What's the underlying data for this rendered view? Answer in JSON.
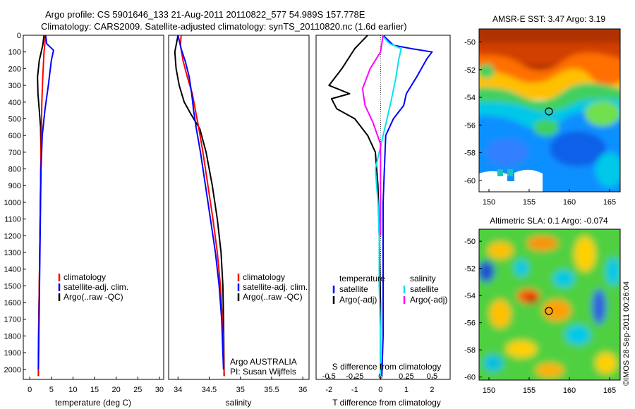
{
  "header": {
    "line1": "Argo profile: CS 5901646_133 21-Aug-2011 20110822_577 54.989S 157.778E",
    "line2": "Climatology: CARS2009. Satellite-adjusted climatology: synTS_20110820.nc (1.6d earlier)"
  },
  "depth_ticks": [
    0,
    100,
    200,
    300,
    400,
    500,
    600,
    700,
    800,
    900,
    1000,
    1100,
    1200,
    1300,
    1400,
    1500,
    1600,
    1700,
    1800,
    1900,
    2000
  ],
  "chart_data": [
    {
      "type": "line",
      "name": "temperature",
      "xlabel": "temperature (deg C)",
      "xlim": [
        -1.5,
        31
      ],
      "xticks": [
        0,
        5,
        10,
        15,
        20,
        25,
        30
      ],
      "ylim": [
        2060,
        0
      ],
      "legend": [
        "climatology",
        "satellite-adj. clim.",
        "Argo(..raw -QC)"
      ],
      "legend_colors": [
        "#ff0000",
        "#0000ff",
        "#000000"
      ],
      "series": [
        {
          "color": "#000000",
          "x": [
            3.3,
            3.0,
            2.2,
            1.8,
            1.9,
            2.2,
            2.5,
            2.6,
            2.5,
            2.4,
            2.3,
            2.2,
            2.1,
            2.0,
            2.0
          ],
          "y": [
            0,
            60,
            150,
            250,
            350,
            450,
            550,
            700,
            900,
            1100,
            1300,
            1500,
            1700,
            1900,
            2040
          ]
        },
        {
          "color": "#ff0000",
          "x": [
            3.6,
            3.5,
            3.3,
            3.0,
            2.8,
            2.7,
            2.6,
            2.5,
            2.4,
            2.3,
            2.2,
            2.1,
            2.05,
            2.0
          ],
          "y": [
            0,
            50,
            100,
            250,
            400,
            550,
            700,
            900,
            1100,
            1300,
            1500,
            1700,
            1900,
            2040
          ]
        },
        {
          "color": "#0000ff",
          "x": [
            3.7,
            3.9,
            5.5,
            5.0,
            4.3,
            3.5,
            2.9,
            2.6,
            2.5,
            2.4,
            2.3,
            2.2,
            2.1,
            2.0
          ],
          "y": [
            0,
            50,
            90,
            150,
            300,
            450,
            600,
            800,
            1000,
            1200,
            1400,
            1600,
            1800,
            2000
          ]
        }
      ]
    },
    {
      "type": "line",
      "name": "salinity",
      "xlabel": "salinity",
      "xlim": [
        33.85,
        36.1
      ],
      "xticks": [
        34,
        34.5,
        35,
        35.5,
        36
      ],
      "ylim": [
        2060,
        0
      ],
      "legend": [
        "climatology",
        "satellite-adj. clim.",
        "Argo(..raw -QC)"
      ],
      "legend_colors": [
        "#ff0000",
        "#0000ff",
        "#000000"
      ],
      "series": [
        {
          "color": "#000000",
          "x": [
            34.0,
            33.95,
            33.97,
            34.02,
            34.1,
            34.22,
            34.35,
            34.45,
            34.55,
            34.63,
            34.69,
            34.72,
            34.73,
            34.735,
            34.74
          ],
          "y": [
            0,
            100,
            200,
            300,
            400,
            480,
            560,
            700,
            900,
            1100,
            1300,
            1500,
            1700,
            1900,
            2040
          ]
        },
        {
          "color": "#ff0000",
          "x": [
            34.05,
            34.04,
            34.08,
            34.15,
            34.23,
            34.28,
            34.33,
            34.4,
            34.48,
            34.56,
            34.63,
            34.68,
            34.71,
            34.73,
            34.74
          ],
          "y": [
            0,
            60,
            150,
            250,
            350,
            450,
            550,
            700,
            900,
            1100,
            1300,
            1500,
            1700,
            1900,
            2040
          ]
        },
        {
          "color": "#0000ff",
          "x": [
            34.0,
            34.05,
            34.12,
            34.18,
            34.22,
            34.25,
            34.29,
            34.36,
            34.44,
            34.52,
            34.6,
            34.66,
            34.7,
            34.72,
            34.73
          ],
          "y": [
            0,
            80,
            160,
            250,
            350,
            450,
            550,
            700,
            900,
            1100,
            1300,
            1500,
            1700,
            1900,
            2000
          ]
        }
      ]
    },
    {
      "type": "line",
      "name": "difference",
      "xlabel": "T difference from climatology",
      "xlabel_top": "S difference from climatology",
      "xlim": [
        -2.5,
        2.7
      ],
      "xticks_bottom": [
        -2,
        -1,
        0,
        1,
        2
      ],
      "xticks_top": [
        [
          "-0.5",
          -2
        ],
        [
          "-0.25",
          -1
        ],
        [
          "0",
          0
        ],
        [
          "0.25",
          1
        ],
        [
          "0.5",
          2
        ]
      ],
      "ylim": [
        2060,
        0
      ],
      "legend_left": {
        "title": "temperature",
        "items": [
          "satellite",
          "Argo(-adj)"
        ],
        "colors": [
          "#0000ff",
          "#000000"
        ]
      },
      "legend_right": {
        "title": "salinity",
        "items": [
          "satellite",
          "Argo(-adj)"
        ],
        "colors": [
          "#00e5ee",
          "#ff00ff"
        ]
      },
      "series": [
        {
          "color": "#000000",
          "x": [
            -0.5,
            -1.0,
            -1.5,
            -1.7,
            -2.0,
            -1.2,
            -1.9,
            -1.7,
            -1.0,
            -0.5,
            -0.2,
            -0.1,
            -0.05,
            0,
            0
          ],
          "y": [
            0,
            80,
            200,
            240,
            300,
            350,
            380,
            440,
            500,
            600,
            700,
            900,
            1200,
            1600,
            2040
          ]
        },
        {
          "color": "#0000ff",
          "x": [
            0.1,
            0.5,
            1.2,
            2.0,
            1.8,
            1.4,
            1.0,
            0.9,
            0.5,
            0.2,
            0.15,
            0.1,
            0.1,
            0.1,
            0.05
          ],
          "y": [
            0,
            60,
            80,
            100,
            140,
            250,
            350,
            420,
            500,
            600,
            800,
            1000,
            1400,
            1800,
            2040
          ]
        },
        {
          "color": "#00e5ee",
          "x": [
            0.05,
            0.35,
            0.8,
            0.7,
            0.6,
            0.4,
            0.1,
            -0.2,
            -0.1,
            -0.05,
            -0.05,
            0,
            0
          ],
          "y": [
            0,
            50,
            80,
            150,
            250,
            400,
            600,
            800,
            1000,
            1200,
            1500,
            1800,
            2040
          ]
        },
        {
          "color": "#ff00ff",
          "x": [
            0.1,
            0.0,
            -0.4,
            -0.7,
            -0.6,
            -0.3,
            0.0,
            0.0,
            0.0
          ],
          "y": [
            0,
            100,
            200,
            320,
            420,
            520,
            650,
            900,
            1200
          ]
        }
      ]
    }
  ],
  "maps": [
    {
      "title": "AMSR-E SST: 3.47 Argo: 3.19",
      "xticks": [
        "150",
        "155",
        "160",
        "165"
      ],
      "yticks": [
        "-50",
        "-52",
        "-54",
        "-56",
        "-58",
        "-60"
      ],
      "kind": "sst"
    },
    {
      "title": "Altimetric SLA: 0.1 Argo: -0.074",
      "xticks": [
        "150",
        "155",
        "160",
        "165"
      ],
      "yticks": [
        "-50",
        "-52",
        "-54",
        "-56",
        "-58",
        "-60"
      ],
      "kind": "sla"
    }
  ],
  "footer": {
    "institution": "Argo AUSTRALIA",
    "pi": "PI: Susan Wijffels",
    "stamp": "©IMOS 28-Sep-2011 00:26:04"
  }
}
